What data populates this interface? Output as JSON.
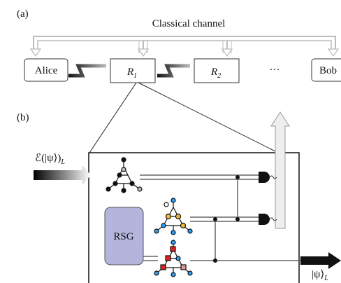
{
  "panel_a": {
    "label": "(a)",
    "channel_label": "Classical channel",
    "nodes": [
      {
        "label": "Alice"
      },
      {
        "label": "R",
        "subscript": "1"
      },
      {
        "label": "R",
        "subscript": "2"
      },
      {
        "label": "···"
      },
      {
        "label": "Bob"
      }
    ]
  },
  "panel_b": {
    "label": "(b)",
    "input_label": "ℰ(|ψ⟩)",
    "input_subscript": "L",
    "generator_label": "RSG",
    "output_label": "|ψ⟩",
    "output_subscript": "L"
  }
}
